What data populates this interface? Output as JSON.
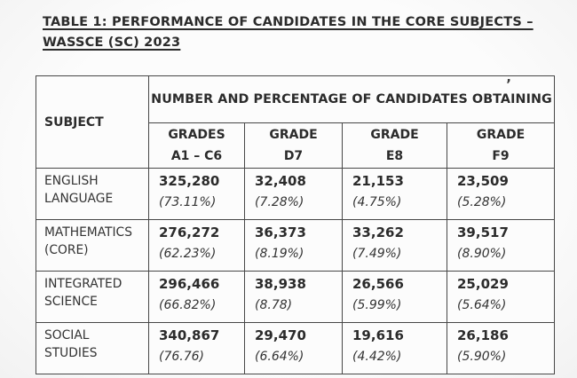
{
  "title": {
    "line1": "TABLE 1: PERFORMANCE OF CANDIDATES IN THE CORE SUBJECTS –",
    "line2": "WASSCE (SC) 2023"
  },
  "table": {
    "subject_header": "SUBJECT",
    "group_header": "NUMBER AND PERCENTAGE OF CANDIDATES OBTAINING",
    "stray_mark": "’",
    "grade_columns": [
      {
        "line1": "GRADES",
        "line2": "A1 – C6"
      },
      {
        "line1": "GRADE",
        "line2": "D7"
      },
      {
        "line1": "GRADE",
        "line2": "E8"
      },
      {
        "line1": "GRADE",
        "line2": "F9"
      }
    ],
    "rows": [
      {
        "subject": "ENGLISH LANGUAGE",
        "cells": [
          {
            "count": "325,280",
            "pct": "(73.11%)"
          },
          {
            "count": "32,408",
            "pct": "(7.28%)"
          },
          {
            "count": "21,153",
            "pct": "(4.75%)"
          },
          {
            "count": "23,509",
            "pct": "(5.28%)"
          }
        ]
      },
      {
        "subject": "MATHEMATICS (CORE)",
        "cells": [
          {
            "count": "276,272",
            "pct": "(62.23%)"
          },
          {
            "count": "36,373",
            "pct": "(8.19%)"
          },
          {
            "count": "33,262",
            "pct": "(7.49%)"
          },
          {
            "count": "39,517",
            "pct": "(8.90%)"
          }
        ]
      },
      {
        "subject": "INTEGRATED SCIENCE",
        "cells": [
          {
            "count": "296,466",
            "pct": "(66.82%)"
          },
          {
            "count": "38,938",
            "pct": "(8.78)"
          },
          {
            "count": "26,566",
            "pct": "(5.99%)"
          },
          {
            "count": "25,029",
            "pct": "(5.64%)"
          }
        ]
      },
      {
        "subject": "SOCIAL STUDIES",
        "cells": [
          {
            "count": "340,867",
            "pct": "(76.76)"
          },
          {
            "count": "29,470",
            "pct": "(6.64%)"
          },
          {
            "count": "19,616",
            "pct": "(4.42%)"
          },
          {
            "count": "26,186",
            "pct": "(5.90%)"
          }
        ]
      }
    ]
  }
}
